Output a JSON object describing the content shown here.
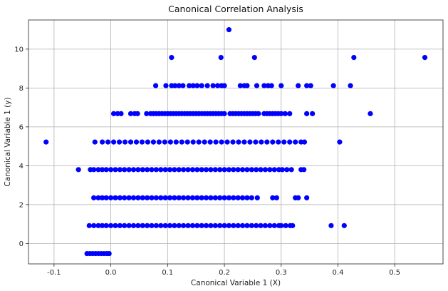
{
  "chart_data": {
    "type": "scatter",
    "title": "Canonical Correlation Analysis",
    "xlabel": "Canonical Variable 1 (X)",
    "ylabel": "Canonical Variable 1 (y)",
    "xlim": [
      -0.145,
      0.585
    ],
    "ylim": [
      -1.05,
      11.5
    ],
    "grid": true,
    "point_color": "#0000ff",
    "x_ticks": [
      {
        "value": -0.1,
        "label": "-0.1"
      },
      {
        "value": 0.0,
        "label": "0.0"
      },
      {
        "value": 0.1,
        "label": "0.1"
      },
      {
        "value": 0.2,
        "label": "0.2"
      },
      {
        "value": 0.3,
        "label": "0.3"
      },
      {
        "value": 0.4,
        "label": "0.4"
      },
      {
        "value": 0.5,
        "label": "0.5"
      }
    ],
    "y_ticks": [
      {
        "value": 0,
        "label": "0"
      },
      {
        "value": 2,
        "label": "2"
      },
      {
        "value": 4,
        "label": "4"
      },
      {
        "value": 6,
        "label": "6"
      },
      {
        "value": 8,
        "label": "8"
      },
      {
        "value": 10,
        "label": "10"
      }
    ],
    "points": [
      [
        0.208,
        11.0
      ],
      [
        0.107,
        9.57
      ],
      [
        0.194,
        9.57
      ],
      [
        0.253,
        9.57
      ],
      [
        0.428,
        9.57
      ],
      [
        0.553,
        9.57
      ],
      [
        0.079,
        8.12
      ],
      [
        0.097,
        8.12
      ],
      [
        0.107,
        8.12
      ],
      [
        0.113,
        8.12
      ],
      [
        0.12,
        8.12
      ],
      [
        0.127,
        8.12
      ],
      [
        0.138,
        8.12
      ],
      [
        0.145,
        8.12
      ],
      [
        0.152,
        8.12
      ],
      [
        0.16,
        8.12
      ],
      [
        0.17,
        8.12
      ],
      [
        0.18,
        8.12
      ],
      [
        0.188,
        8.12
      ],
      [
        0.195,
        8.12
      ],
      [
        0.2,
        8.12
      ],
      [
        0.228,
        8.12
      ],
      [
        0.235,
        8.12
      ],
      [
        0.24,
        8.12
      ],
      [
        0.257,
        8.12
      ],
      [
        0.27,
        8.12
      ],
      [
        0.277,
        8.12
      ],
      [
        0.283,
        8.12
      ],
      [
        0.3,
        8.12
      ],
      [
        0.33,
        8.12
      ],
      [
        0.345,
        8.12
      ],
      [
        0.352,
        8.12
      ],
      [
        0.392,
        8.12
      ],
      [
        0.422,
        8.12
      ],
      [
        0.005,
        6.68
      ],
      [
        0.012,
        6.68
      ],
      [
        0.018,
        6.68
      ],
      [
        0.035,
        6.68
      ],
      [
        0.042,
        6.68
      ],
      [
        0.047,
        6.68
      ],
      [
        0.063,
        6.68
      ],
      [
        0.07,
        6.68
      ],
      [
        0.075,
        6.68
      ],
      [
        0.08,
        6.68
      ],
      [
        0.085,
        6.68
      ],
      [
        0.09,
        6.68
      ],
      [
        0.095,
        6.68
      ],
      [
        0.1,
        6.68
      ],
      [
        0.105,
        6.68
      ],
      [
        0.11,
        6.68
      ],
      [
        0.115,
        6.68
      ],
      [
        0.12,
        6.68
      ],
      [
        0.125,
        6.68
      ],
      [
        0.13,
        6.68
      ],
      [
        0.135,
        6.68
      ],
      [
        0.14,
        6.68
      ],
      [
        0.145,
        6.68
      ],
      [
        0.15,
        6.68
      ],
      [
        0.155,
        6.68
      ],
      [
        0.16,
        6.68
      ],
      [
        0.165,
        6.68
      ],
      [
        0.17,
        6.68
      ],
      [
        0.175,
        6.68
      ],
      [
        0.18,
        6.68
      ],
      [
        0.185,
        6.68
      ],
      [
        0.19,
        6.68
      ],
      [
        0.195,
        6.68
      ],
      [
        0.2,
        6.68
      ],
      [
        0.21,
        6.68
      ],
      [
        0.215,
        6.68
      ],
      [
        0.22,
        6.68
      ],
      [
        0.225,
        6.68
      ],
      [
        0.23,
        6.68
      ],
      [
        0.235,
        6.68
      ],
      [
        0.24,
        6.68
      ],
      [
        0.245,
        6.68
      ],
      [
        0.25,
        6.68
      ],
      [
        0.255,
        6.68
      ],
      [
        0.26,
        6.68
      ],
      [
        0.27,
        6.68
      ],
      [
        0.275,
        6.68
      ],
      [
        0.28,
        6.68
      ],
      [
        0.285,
        6.68
      ],
      [
        0.29,
        6.68
      ],
      [
        0.295,
        6.68
      ],
      [
        0.3,
        6.68
      ],
      [
        0.307,
        6.68
      ],
      [
        0.315,
        6.68
      ],
      [
        0.345,
        6.68
      ],
      [
        0.355,
        6.68
      ],
      [
        0.457,
        6.68
      ],
      [
        -0.114,
        5.22
      ],
      [
        -0.028,
        5.22
      ],
      [
        -0.015,
        5.22
      ],
      [
        -0.005,
        5.22
      ],
      [
        0.005,
        5.22
      ],
      [
        0.015,
        5.22
      ],
      [
        0.025,
        5.22
      ],
      [
        0.035,
        5.22
      ],
      [
        0.045,
        5.22
      ],
      [
        0.055,
        5.22
      ],
      [
        0.065,
        5.22
      ],
      [
        0.075,
        5.22
      ],
      [
        0.085,
        5.22
      ],
      [
        0.095,
        5.22
      ],
      [
        0.105,
        5.22
      ],
      [
        0.115,
        5.22
      ],
      [
        0.125,
        5.22
      ],
      [
        0.135,
        5.22
      ],
      [
        0.145,
        5.22
      ],
      [
        0.155,
        5.22
      ],
      [
        0.165,
        5.22
      ],
      [
        0.175,
        5.22
      ],
      [
        0.185,
        5.22
      ],
      [
        0.195,
        5.22
      ],
      [
        0.205,
        5.22
      ],
      [
        0.215,
        5.22
      ],
      [
        0.225,
        5.22
      ],
      [
        0.235,
        5.22
      ],
      [
        0.245,
        5.22
      ],
      [
        0.255,
        5.22
      ],
      [
        0.265,
        5.22
      ],
      [
        0.275,
        5.22
      ],
      [
        0.285,
        5.22
      ],
      [
        0.295,
        5.22
      ],
      [
        0.305,
        5.22
      ],
      [
        0.315,
        5.22
      ],
      [
        0.325,
        5.22
      ],
      [
        0.335,
        5.22
      ],
      [
        0.341,
        5.22
      ],
      [
        0.403,
        5.22
      ],
      [
        -0.057,
        3.8
      ],
      [
        -0.036,
        3.8
      ],
      [
        -0.03,
        3.8
      ],
      [
        -0.022,
        3.8
      ],
      [
        -0.015,
        3.8
      ],
      [
        -0.008,
        3.8
      ],
      [
        0.0,
        3.8
      ],
      [
        0.008,
        3.8
      ],
      [
        0.016,
        3.8
      ],
      [
        0.024,
        3.8
      ],
      [
        0.032,
        3.8
      ],
      [
        0.04,
        3.8
      ],
      [
        0.048,
        3.8
      ],
      [
        0.056,
        3.8
      ],
      [
        0.064,
        3.8
      ],
      [
        0.072,
        3.8
      ],
      [
        0.08,
        3.8
      ],
      [
        0.088,
        3.8
      ],
      [
        0.096,
        3.8
      ],
      [
        0.104,
        3.8
      ],
      [
        0.112,
        3.8
      ],
      [
        0.12,
        3.8
      ],
      [
        0.128,
        3.8
      ],
      [
        0.136,
        3.8
      ],
      [
        0.144,
        3.8
      ],
      [
        0.152,
        3.8
      ],
      [
        0.16,
        3.8
      ],
      [
        0.168,
        3.8
      ],
      [
        0.176,
        3.8
      ],
      [
        0.184,
        3.8
      ],
      [
        0.192,
        3.8
      ],
      [
        0.2,
        3.8
      ],
      [
        0.208,
        3.8
      ],
      [
        0.216,
        3.8
      ],
      [
        0.224,
        3.8
      ],
      [
        0.232,
        3.8
      ],
      [
        0.24,
        3.8
      ],
      [
        0.248,
        3.8
      ],
      [
        0.256,
        3.8
      ],
      [
        0.264,
        3.8
      ],
      [
        0.272,
        3.8
      ],
      [
        0.28,
        3.8
      ],
      [
        0.288,
        3.8
      ],
      [
        0.296,
        3.8
      ],
      [
        0.302,
        3.8
      ],
      [
        0.31,
        3.8
      ],
      [
        0.318,
        3.8
      ],
      [
        0.335,
        3.8
      ],
      [
        0.34,
        3.8
      ],
      [
        -0.03,
        2.35
      ],
      [
        -0.022,
        2.35
      ],
      [
        -0.015,
        2.35
      ],
      [
        -0.008,
        2.35
      ],
      [
        0.0,
        2.35
      ],
      [
        0.008,
        2.35
      ],
      [
        0.016,
        2.35
      ],
      [
        0.024,
        2.35
      ],
      [
        0.032,
        2.35
      ],
      [
        0.04,
        2.35
      ],
      [
        0.048,
        2.35
      ],
      [
        0.056,
        2.35
      ],
      [
        0.064,
        2.35
      ],
      [
        0.072,
        2.35
      ],
      [
        0.08,
        2.35
      ],
      [
        0.088,
        2.35
      ],
      [
        0.096,
        2.35
      ],
      [
        0.104,
        2.35
      ],
      [
        0.112,
        2.35
      ],
      [
        0.12,
        2.35
      ],
      [
        0.128,
        2.35
      ],
      [
        0.136,
        2.35
      ],
      [
        0.144,
        2.35
      ],
      [
        0.152,
        2.35
      ],
      [
        0.16,
        2.35
      ],
      [
        0.168,
        2.35
      ],
      [
        0.176,
        2.35
      ],
      [
        0.184,
        2.35
      ],
      [
        0.192,
        2.35
      ],
      [
        0.2,
        2.35
      ],
      [
        0.208,
        2.35
      ],
      [
        0.216,
        2.35
      ],
      [
        0.224,
        2.35
      ],
      [
        0.232,
        2.35
      ],
      [
        0.24,
        2.35
      ],
      [
        0.248,
        2.35
      ],
      [
        0.258,
        2.35
      ],
      [
        0.285,
        2.35
      ],
      [
        0.292,
        2.35
      ],
      [
        0.325,
        2.35
      ],
      [
        0.33,
        2.35
      ],
      [
        0.345,
        2.35
      ],
      [
        -0.038,
        0.92
      ],
      [
        -0.03,
        0.92
      ],
      [
        -0.022,
        0.92
      ],
      [
        -0.015,
        0.92
      ],
      [
        -0.008,
        0.92
      ],
      [
        0.0,
        0.92
      ],
      [
        0.008,
        0.92
      ],
      [
        0.016,
        0.92
      ],
      [
        0.024,
        0.92
      ],
      [
        0.032,
        0.92
      ],
      [
        0.04,
        0.92
      ],
      [
        0.048,
        0.92
      ],
      [
        0.056,
        0.92
      ],
      [
        0.064,
        0.92
      ],
      [
        0.072,
        0.92
      ],
      [
        0.08,
        0.92
      ],
      [
        0.088,
        0.92
      ],
      [
        0.096,
        0.92
      ],
      [
        0.104,
        0.92
      ],
      [
        0.112,
        0.92
      ],
      [
        0.12,
        0.92
      ],
      [
        0.128,
        0.92
      ],
      [
        0.136,
        0.92
      ],
      [
        0.144,
        0.92
      ],
      [
        0.152,
        0.92
      ],
      [
        0.16,
        0.92
      ],
      [
        0.168,
        0.92
      ],
      [
        0.176,
        0.92
      ],
      [
        0.184,
        0.92
      ],
      [
        0.192,
        0.92
      ],
      [
        0.2,
        0.92
      ],
      [
        0.208,
        0.92
      ],
      [
        0.216,
        0.92
      ],
      [
        0.224,
        0.92
      ],
      [
        0.232,
        0.92
      ],
      [
        0.24,
        0.92
      ],
      [
        0.248,
        0.92
      ],
      [
        0.256,
        0.92
      ],
      [
        0.264,
        0.92
      ],
      [
        0.272,
        0.92
      ],
      [
        0.28,
        0.92
      ],
      [
        0.288,
        0.92
      ],
      [
        0.296,
        0.92
      ],
      [
        0.3,
        0.92
      ],
      [
        0.308,
        0.92
      ],
      [
        0.316,
        0.92
      ],
      [
        0.32,
        0.92
      ],
      [
        0.388,
        0.92
      ],
      [
        0.411,
        0.92
      ],
      [
        -0.042,
        -0.52
      ],
      [
        -0.037,
        -0.52
      ],
      [
        -0.032,
        -0.52
      ],
      [
        -0.027,
        -0.52
      ],
      [
        -0.022,
        -0.52
      ],
      [
        -0.017,
        -0.52
      ],
      [
        -0.012,
        -0.52
      ],
      [
        -0.007,
        -0.52
      ],
      [
        -0.003,
        -0.52
      ]
    ]
  }
}
